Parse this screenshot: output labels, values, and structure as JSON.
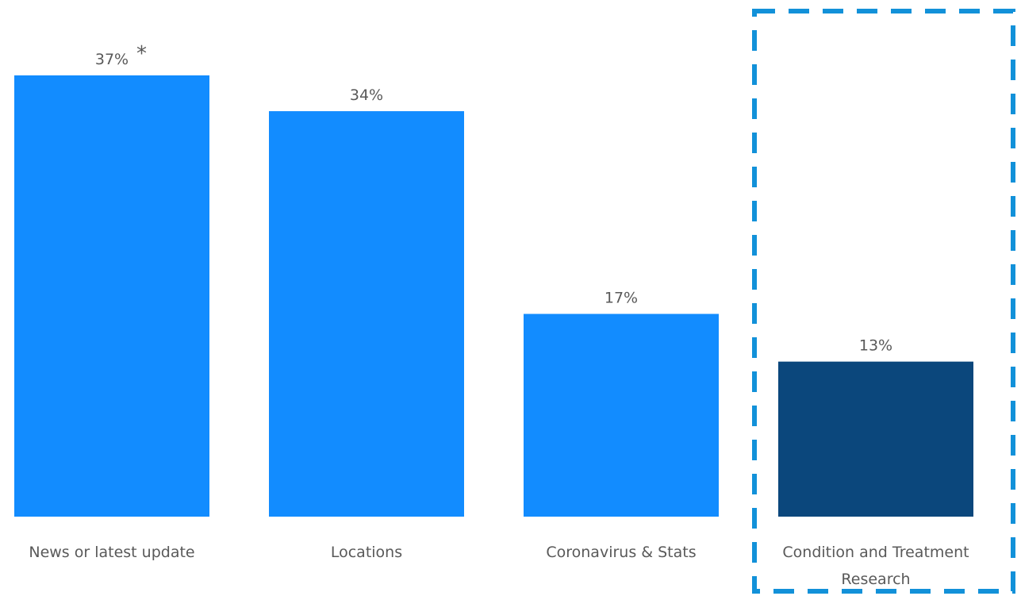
{
  "chart_data": {
    "type": "bar",
    "categories": [
      "News or latest update",
      "Locations",
      "Coronavirus & Stats",
      "Condition and Treatment Research"
    ],
    "category_lines": [
      [
        "News or latest update"
      ],
      [
        "Locations"
      ],
      [
        "Coronavirus & Stats"
      ],
      [
        "Condition and Treatment",
        "Research"
      ]
    ],
    "values": [
      37,
      34,
      17,
      13
    ],
    "value_labels": [
      "37%",
      "34%",
      "17%",
      "13%"
    ],
    "value_unit": "%",
    "ylim": [
      0,
      37
    ],
    "grid": false,
    "legend": "none",
    "annotations": [
      {
        "category": "News or latest update",
        "text": "*"
      }
    ],
    "highlight": {
      "category": "Condition and Treatment Research",
      "style": "dashed-box"
    },
    "colors": {
      "bar": "#128cff",
      "highlight_bar": "#0b477c",
      "highlight_box": "#1291d9",
      "text": "#595959"
    }
  }
}
